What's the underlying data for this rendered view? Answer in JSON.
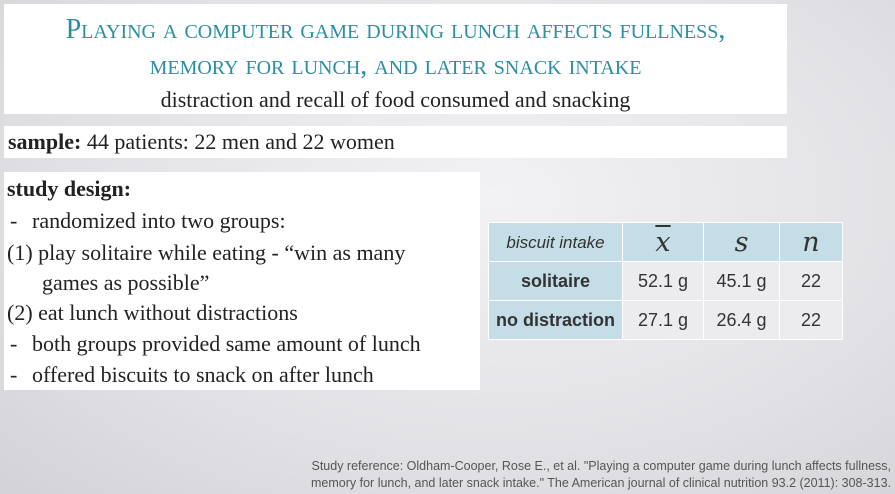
{
  "title": {
    "line1": "Playing a computer game during lunch affects fullness,",
    "line2": "memory for lunch, and later snack intake",
    "subtitle": "distraction and recall of food consumed and snacking"
  },
  "sample": {
    "label": "sample:",
    "text": "44 patients: 22 men and 22 women"
  },
  "study_design": {
    "heading": "study design:",
    "lines": [
      {
        "marker": "-",
        "text": "randomized into two groups:"
      },
      {
        "marker": "(1)",
        "text": "play solitaire while eating - “win as many"
      },
      {
        "marker": "",
        "text": "games as possible”"
      },
      {
        "marker": "(2)",
        "text": "eat lunch without distractions"
      },
      {
        "marker": "-",
        "text": "both groups provided same amount of lunch"
      },
      {
        "marker": "-",
        "text": "offered biscuits to snack on after lunch"
      }
    ]
  },
  "table": {
    "header": [
      "biscuit intake",
      "x",
      "s",
      "n"
    ],
    "rows": [
      {
        "label": "solitaire",
        "mean": "52.1 g",
        "sd": "45.1 g",
        "n": "22"
      },
      {
        "label": "no distraction",
        "mean": "27.1 g",
        "sd": "26.4 g",
        "n": "22"
      }
    ]
  },
  "reference": {
    "line1": "Study reference: Oldham-Cooper, Rose E., et al. \"Playing a computer game during lunch affects fullness,",
    "line2": "memory for lunch, and later snack intake.\" The American journal of clinical nutrition 93.2 (2011): 308-313."
  },
  "colors": {
    "title": "#2b8ea3",
    "table_header_bg": "#c4dde6",
    "table_cell_bg": "#ececee"
  }
}
